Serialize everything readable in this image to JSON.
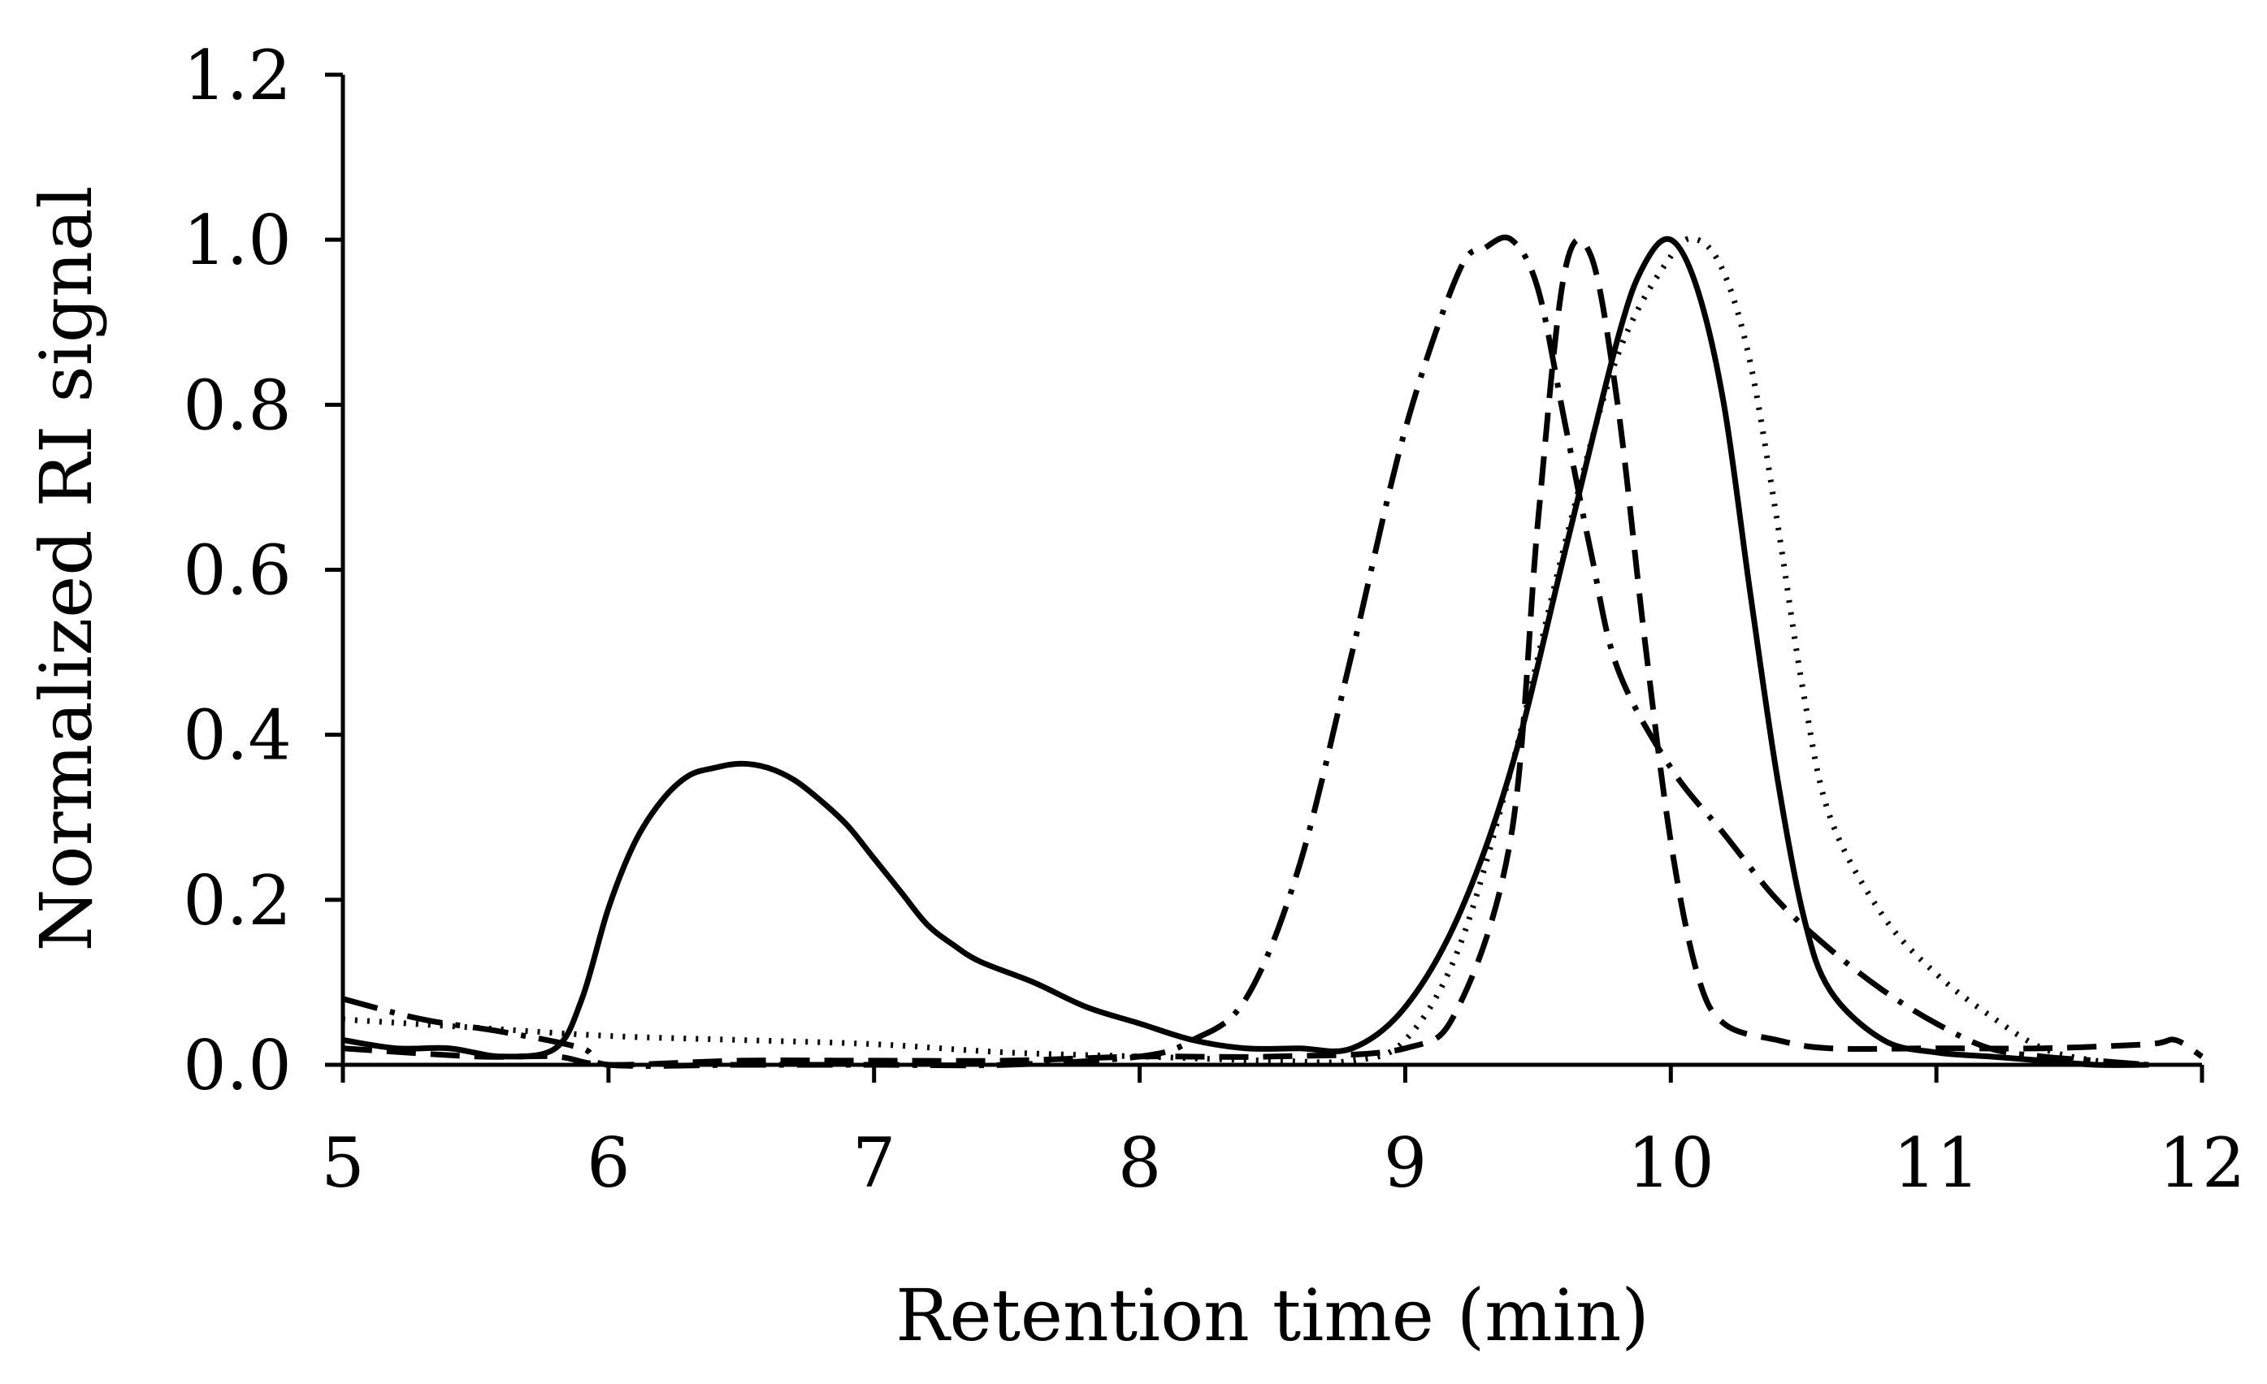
{
  "chart_data": {
    "type": "line",
    "title": "",
    "xlabel": "Retention time (min)",
    "ylabel": "Normalized RI signal",
    "xlim": [
      5,
      12
    ],
    "ylim": [
      0,
      1.2
    ],
    "x_ticks": [
      "5",
      "6",
      "7",
      "8",
      "9",
      "10",
      "11",
      "12"
    ],
    "y_ticks": [
      "0.0",
      "0.2",
      "0.4",
      "0.6",
      "0.8",
      "1.0",
      "1.2"
    ],
    "grid": false,
    "legend": "none",
    "colors": {
      "line": "#000000",
      "axis": "#000000",
      "background": "#ffffff"
    },
    "series": [
      {
        "name": "solid",
        "style": "solid",
        "x": [
          5.0,
          5.2,
          5.4,
          5.6,
          5.8,
          5.9,
          6.0,
          6.1,
          6.2,
          6.3,
          6.4,
          6.5,
          6.6,
          6.7,
          6.8,
          6.9,
          7.0,
          7.1,
          7.2,
          7.3,
          7.4,
          7.6,
          7.8,
          8.0,
          8.2,
          8.4,
          8.6,
          8.8,
          9.0,
          9.2,
          9.4,
          9.6,
          9.8,
          9.9,
          10.0,
          10.1,
          10.2,
          10.3,
          10.4,
          10.5,
          10.6,
          10.8,
          11.0,
          11.2,
          11.4,
          11.6,
          11.8
        ],
        "y": [
          0.03,
          0.02,
          0.02,
          0.01,
          0.02,
          0.08,
          0.19,
          0.27,
          0.32,
          0.35,
          0.36,
          0.365,
          0.36,
          0.345,
          0.32,
          0.29,
          0.25,
          0.21,
          0.17,
          0.145,
          0.125,
          0.1,
          0.07,
          0.05,
          0.03,
          0.02,
          0.02,
          0.02,
          0.07,
          0.18,
          0.36,
          0.62,
          0.88,
          0.97,
          1.0,
          0.94,
          0.8,
          0.57,
          0.35,
          0.18,
          0.09,
          0.03,
          0.015,
          0.01,
          0.005,
          0.0,
          0.0
        ]
      },
      {
        "name": "dotted",
        "style": "dotted",
        "x": [
          5.0,
          5.5,
          6.0,
          6.5,
          7.0,
          7.5,
          8.0,
          8.5,
          8.8,
          9.0,
          9.2,
          9.4,
          9.6,
          9.8,
          10.0,
          10.1,
          10.2,
          10.3,
          10.4,
          10.5,
          10.6,
          10.8,
          11.0,
          11.2,
          11.4,
          11.6,
          11.8
        ],
        "y": [
          0.055,
          0.045,
          0.035,
          0.03,
          0.025,
          0.015,
          0.01,
          0.005,
          0.005,
          0.03,
          0.14,
          0.36,
          0.63,
          0.86,
          0.98,
          1.0,
          0.96,
          0.85,
          0.66,
          0.45,
          0.3,
          0.18,
          0.11,
          0.06,
          0.02,
          0.005,
          0.0
        ]
      },
      {
        "name": "dashed",
        "style": "dashed",
        "x": [
          5.0,
          5.5,
          5.8,
          6.0,
          6.5,
          7.0,
          7.5,
          8.0,
          8.5,
          9.0,
          9.2,
          9.4,
          9.5,
          9.6,
          9.7,
          9.8,
          9.9,
          10.0,
          10.1,
          10.2,
          10.4,
          10.6,
          11.0,
          11.4,
          11.8,
          11.9,
          12.0
        ],
        "y": [
          0.02,
          0.01,
          0.01,
          0.0,
          0.005,
          0.005,
          0.005,
          0.01,
          0.01,
          0.02,
          0.07,
          0.28,
          0.66,
          0.96,
          0.98,
          0.8,
          0.52,
          0.27,
          0.11,
          0.05,
          0.03,
          0.02,
          0.02,
          0.02,
          0.025,
          0.03,
          0.01
        ]
      },
      {
        "name": "dash-dot",
        "style": "dash-dot",
        "x": [
          5.0,
          5.3,
          5.6,
          5.9,
          6.0,
          6.5,
          7.0,
          7.5,
          8.0,
          8.2,
          8.4,
          8.6,
          8.8,
          9.0,
          9.2,
          9.3,
          9.4,
          9.5,
          9.6,
          9.7,
          9.8,
          10.0,
          10.2,
          10.4,
          10.6,
          10.8,
          11.0,
          11.2,
          11.4,
          11.6,
          11.8
        ],
        "y": [
          0.08,
          0.055,
          0.04,
          0.02,
          0.0,
          0.0,
          0.0,
          0.0,
          0.01,
          0.03,
          0.08,
          0.24,
          0.5,
          0.77,
          0.96,
          0.99,
          1.0,
          0.94,
          0.78,
          0.62,
          0.48,
          0.36,
          0.28,
          0.2,
          0.14,
          0.09,
          0.05,
          0.02,
          0.01,
          0.005,
          0.0
        ]
      }
    ]
  }
}
